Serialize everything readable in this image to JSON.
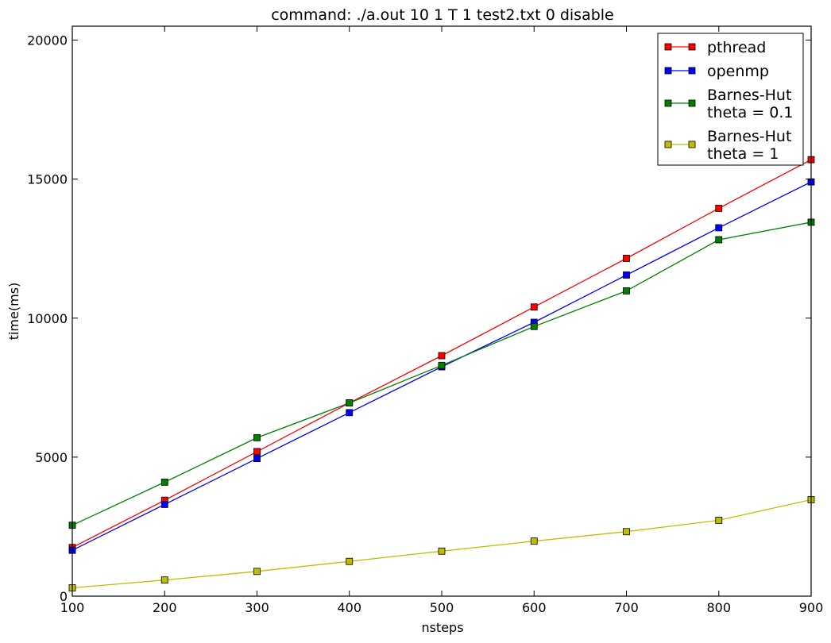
{
  "chart_data": {
    "type": "line",
    "title": "command: ./a.out 10 1 T 1 test2.txt 0 disable",
    "xlabel": "nsteps",
    "ylabel": "time(ms)",
    "xlim": [
      100,
      900
    ],
    "ylim": [
      0,
      20500
    ],
    "xticks": [
      100,
      200,
      300,
      400,
      500,
      600,
      700,
      800,
      900
    ],
    "yticks": [
      0,
      5000,
      10000,
      15000,
      20000
    ],
    "grid": false,
    "legend_position": "top-right",
    "x": [
      100,
      200,
      300,
      400,
      500,
      600,
      700,
      800,
      900
    ],
    "series": [
      {
        "name_lines": [
          "pthread"
        ],
        "color": "#ff0000",
        "marker": "square",
        "values": [
          1750,
          3450,
          5200,
          6950,
          8650,
          10400,
          12150,
          13950,
          15700
        ]
      },
      {
        "name_lines": [
          "openmp"
        ],
        "color": "#0000ff",
        "marker": "square",
        "values": [
          1650,
          3300,
          4950,
          6600,
          8250,
          9850,
          11550,
          13250,
          14900
        ]
      },
      {
        "name_lines": [
          "Barnes-Hut",
          "theta = 0.1"
        ],
        "color": "#008000",
        "marker": "square",
        "values": [
          2550,
          4100,
          5700,
          6950,
          8300,
          9700,
          10980,
          12820,
          13450
        ]
      },
      {
        "name_lines": [
          "Barnes-Hut",
          "theta = 1"
        ],
        "color": "#bfbf00",
        "marker": "square",
        "values": [
          300,
          580,
          890,
          1250,
          1620,
          1980,
          2320,
          2730,
          3470
        ]
      }
    ]
  }
}
